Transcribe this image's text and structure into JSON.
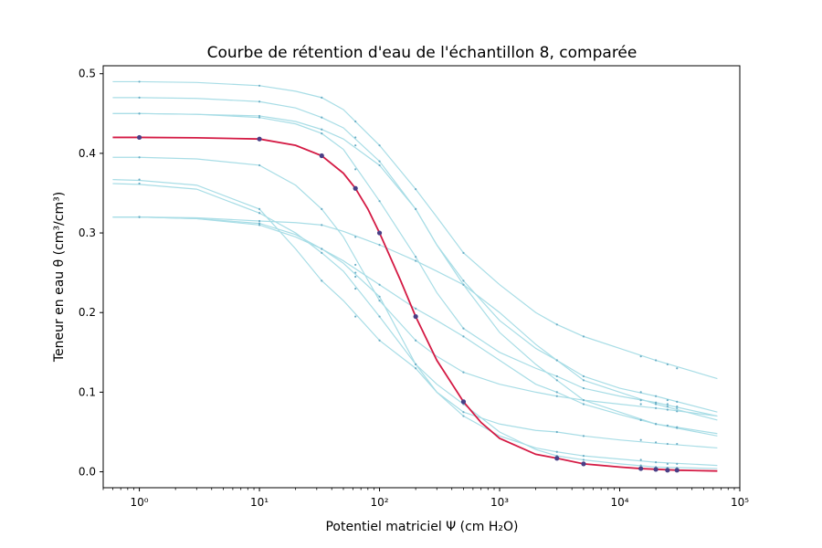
{
  "chart_data": {
    "type": "line",
    "title": "Courbe de rétention d'eau de l'échantillon 8, comparée",
    "xlabel": "Potentiel matriciel Ψ  (cm H₂O)",
    "ylabel": "Teneur en eau θ (cm³/cm³)",
    "x_scale": "log",
    "xlim": [
      0.5,
      100000
    ],
    "ylim": [
      -0.02,
      0.51
    ],
    "x_ticks": [
      {
        "value": 1,
        "label": "10⁰"
      },
      {
        "value": 10,
        "label": "10¹"
      },
      {
        "value": 100,
        "label": "10²"
      },
      {
        "value": 1000,
        "label": "10³"
      },
      {
        "value": 10000,
        "label": "10⁴"
      },
      {
        "value": 100000,
        "label": "10⁵"
      }
    ],
    "y_ticks": [
      {
        "value": 0.0,
        "label": "0.0"
      },
      {
        "value": 0.1,
        "label": "0.1"
      },
      {
        "value": 0.2,
        "label": "0.2"
      },
      {
        "value": 0.3,
        "label": "0.3"
      },
      {
        "value": 0.4,
        "label": "0.4"
      },
      {
        "value": 0.5,
        "label": "0.5"
      }
    ],
    "grid": false,
    "colors": {
      "highlight_line": "#d41a44",
      "highlight_points": "#4a3f86",
      "comparison_lines": "#a8dde6",
      "comparison_points": "#6aaec6"
    },
    "highlight_series": {
      "points_x": [
        1,
        10,
        33,
        63,
        100,
        200,
        500,
        3000,
        5000,
        15000,
        20000,
        25000,
        30000
      ],
      "points_y": [
        0.42,
        0.418,
        0.397,
        0.356,
        0.3,
        0.195,
        0.088,
        0.017,
        0.01,
        0.004,
        0.003,
        0.002,
        0.002
      ],
      "curve_x": [
        0.6,
        1,
        3,
        10,
        20,
        33,
        50,
        63,
        80,
        100,
        150,
        200,
        300,
        500,
        700,
        1000,
        2000,
        3000,
        5000,
        10000,
        15000,
        30000,
        65000
      ],
      "curve_y": [
        0.42,
        0.42,
        0.4195,
        0.418,
        0.41,
        0.397,
        0.375,
        0.356,
        0.33,
        0.3,
        0.24,
        0.195,
        0.14,
        0.088,
        0.062,
        0.042,
        0.022,
        0.017,
        0.01,
        0.006,
        0.004,
        0.002,
        0.001
      ]
    },
    "comparison_series": [
      {
        "points_x": [
          1,
          10,
          33,
          63,
          100,
          200,
          500,
          3000,
          5000,
          15000,
          20000,
          25000,
          30000
        ],
        "points_y": [
          0.49,
          0.485,
          0.47,
          0.44,
          0.41,
          0.355,
          0.275,
          0.185,
          0.17,
          0.145,
          0.14,
          0.135,
          0.13
        ],
        "curve_x": [
          0.6,
          1,
          3,
          10,
          20,
          33,
          50,
          63,
          100,
          200,
          300,
          500,
          1000,
          2000,
          3000,
          5000,
          10000,
          20000,
          65000
        ],
        "curve_y": [
          0.49,
          0.49,
          0.489,
          0.485,
          0.478,
          0.47,
          0.455,
          0.44,
          0.41,
          0.355,
          0.32,
          0.275,
          0.235,
          0.2,
          0.185,
          0.17,
          0.155,
          0.14,
          0.117
        ]
      },
      {
        "points_x": [
          1,
          10,
          33,
          63,
          100,
          200,
          500,
          3000,
          5000,
          15000,
          20000,
          25000,
          30000
        ],
        "points_y": [
          0.47,
          0.465,
          0.445,
          0.42,
          0.39,
          0.33,
          0.24,
          0.14,
          0.115,
          0.09,
          0.085,
          0.082,
          0.08
        ],
        "curve_x": [
          0.6,
          1,
          3,
          10,
          20,
          33,
          50,
          100,
          200,
          300,
          500,
          1000,
          2000,
          3000,
          5000,
          10000,
          20000,
          65000
        ],
        "curve_y": [
          0.47,
          0.47,
          0.469,
          0.465,
          0.457,
          0.445,
          0.432,
          0.39,
          0.33,
          0.285,
          0.24,
          0.19,
          0.155,
          0.14,
          0.115,
          0.1,
          0.085,
          0.065
        ]
      },
      {
        "points_x": [
          1,
          10,
          33,
          63,
          100,
          200,
          500,
          3000,
          5000,
          15000,
          20000,
          25000,
          30000
        ],
        "points_y": [
          0.45,
          0.445,
          0.425,
          0.38,
          0.34,
          0.27,
          0.18,
          0.12,
          0.105,
          0.09,
          0.087,
          0.085,
          0.082
        ],
        "curve_x": [
          0.6,
          1,
          3,
          10,
          20,
          33,
          50,
          100,
          200,
          300,
          500,
          1000,
          2000,
          3000,
          5000,
          10000,
          20000,
          65000
        ],
        "curve_y": [
          0.45,
          0.45,
          0.449,
          0.445,
          0.437,
          0.425,
          0.405,
          0.34,
          0.27,
          0.225,
          0.18,
          0.15,
          0.13,
          0.12,
          0.105,
          0.095,
          0.087,
          0.07
        ]
      },
      {
        "points_x": [
          1,
          10,
          33,
          63,
          100,
          200,
          500,
          3000,
          5000,
          15000,
          20000,
          25000,
          30000
        ],
        "points_y": [
          0.45,
          0.447,
          0.43,
          0.41,
          0.385,
          0.33,
          0.235,
          0.115,
          0.09,
          0.065,
          0.06,
          0.058,
          0.055
        ],
        "curve_x": [
          0.6,
          1,
          3,
          10,
          20,
          33,
          50,
          100,
          200,
          300,
          500,
          1000,
          2000,
          3000,
          5000,
          10000,
          20000,
          65000
        ],
        "curve_y": [
          0.45,
          0.45,
          0.449,
          0.447,
          0.44,
          0.43,
          0.418,
          0.385,
          0.33,
          0.285,
          0.235,
          0.175,
          0.135,
          0.115,
          0.09,
          0.075,
          0.06,
          0.045
        ]
      },
      {
        "points_x": [
          1,
          10,
          33,
          63,
          100,
          200,
          500,
          3000,
          5000,
          15000,
          20000,
          25000,
          30000
        ],
        "points_y": [
          0.395,
          0.385,
          0.33,
          0.26,
          0.215,
          0.165,
          0.125,
          0.095,
          0.09,
          0.085,
          0.08,
          0.078,
          0.076
        ],
        "curve_x": [
          0.6,
          1,
          3,
          10,
          20,
          33,
          50,
          100,
          200,
          300,
          500,
          1000,
          2000,
          3000,
          5000,
          10000,
          20000,
          65000
        ],
        "curve_y": [
          0.395,
          0.395,
          0.393,
          0.385,
          0.36,
          0.33,
          0.295,
          0.215,
          0.165,
          0.145,
          0.125,
          0.11,
          0.1,
          0.095,
          0.09,
          0.085,
          0.08,
          0.07
        ]
      },
      {
        "points_x": [
          1,
          10,
          33,
          63,
          100,
          200,
          500,
          3000,
          5000,
          15000,
          20000,
          25000,
          30000
        ],
        "points_y": [
          0.367,
          0.33,
          0.24,
          0.195,
          0.165,
          0.13,
          0.07,
          0.025,
          0.02,
          0.015,
          0.012,
          0.01,
          0.01
        ],
        "curve_x": [
          0.6,
          1,
          3,
          10,
          20,
          33,
          50,
          100,
          200,
          300,
          500,
          1000,
          2000,
          3000,
          5000,
          10000,
          20000,
          65000
        ],
        "curve_y": [
          0.367,
          0.366,
          0.36,
          0.33,
          0.28,
          0.24,
          0.215,
          0.165,
          0.13,
          0.1,
          0.07,
          0.045,
          0.03,
          0.025,
          0.02,
          0.016,
          0.012,
          0.008
        ]
      },
      {
        "points_x": [
          1,
          10,
          33,
          63,
          100,
          200,
          500,
          3000,
          5000,
          15000,
          20000,
          25000,
          30000
        ],
        "points_y": [
          0.362,
          0.325,
          0.275,
          0.23,
          0.195,
          0.135,
          0.075,
          0.05,
          0.045,
          0.04,
          0.037,
          0.035,
          0.035
        ],
        "curve_x": [
          0.6,
          1,
          3,
          10,
          20,
          33,
          50,
          100,
          200,
          300,
          500,
          1000,
          2000,
          3000,
          5000,
          10000,
          20000,
          65000
        ],
        "curve_y": [
          0.362,
          0.361,
          0.355,
          0.325,
          0.3,
          0.275,
          0.252,
          0.195,
          0.135,
          0.1,
          0.075,
          0.06,
          0.052,
          0.05,
          0.045,
          0.04,
          0.036,
          0.03
        ]
      },
      {
        "points_x": [
          1,
          10,
          33,
          63,
          100,
          200,
          500,
          3000,
          5000,
          15000,
          20000,
          25000,
          30000
        ],
        "points_y": [
          0.32,
          0.315,
          0.31,
          0.295,
          0.285,
          0.265,
          0.235,
          0.14,
          0.12,
          0.1,
          0.095,
          0.09,
          0.088
        ],
        "curve_x": [
          0.6,
          1,
          3,
          10,
          20,
          33,
          50,
          100,
          200,
          300,
          500,
          1000,
          2000,
          3000,
          5000,
          10000,
          20000,
          65000
        ],
        "curve_y": [
          0.32,
          0.32,
          0.319,
          0.315,
          0.313,
          0.31,
          0.302,
          0.285,
          0.265,
          0.252,
          0.235,
          0.2,
          0.16,
          0.14,
          0.12,
          0.105,
          0.095,
          0.075
        ]
      },
      {
        "points_x": [
          1,
          10,
          33,
          63,
          100,
          200,
          500,
          3000,
          5000,
          15000,
          20000,
          25000,
          30000
        ],
        "points_y": [
          0.32,
          0.31,
          0.28,
          0.25,
          0.235,
          0.205,
          0.17,
          0.1,
          0.085,
          0.065,
          0.06,
          0.058,
          0.056
        ],
        "curve_x": [
          0.6,
          1,
          3,
          10,
          20,
          33,
          50,
          100,
          200,
          300,
          500,
          1000,
          2000,
          3000,
          5000,
          10000,
          20000,
          65000
        ],
        "curve_y": [
          0.32,
          0.32,
          0.318,
          0.31,
          0.295,
          0.28,
          0.265,
          0.235,
          0.205,
          0.19,
          0.17,
          0.14,
          0.11,
          0.1,
          0.085,
          0.072,
          0.06,
          0.048
        ]
      },
      {
        "points_x": [
          1,
          10,
          33,
          63,
          100,
          200,
          500,
          3000,
          5000,
          15000,
          20000,
          25000,
          30000
        ],
        "points_y": [
          0.32,
          0.312,
          0.28,
          0.245,
          0.22,
          0.135,
          0.085,
          0.02,
          0.015,
          0.008,
          0.006,
          0.005,
          0.005
        ],
        "curve_x": [
          0.6,
          1,
          3,
          10,
          20,
          33,
          50,
          100,
          200,
          300,
          500,
          1000,
          2000,
          3000,
          5000,
          10000,
          20000,
          65000
        ],
        "curve_y": [
          0.32,
          0.32,
          0.318,
          0.312,
          0.298,
          0.28,
          0.262,
          0.22,
          0.135,
          0.11,
          0.085,
          0.05,
          0.028,
          0.02,
          0.015,
          0.01,
          0.006,
          0.004
        ]
      }
    ]
  }
}
